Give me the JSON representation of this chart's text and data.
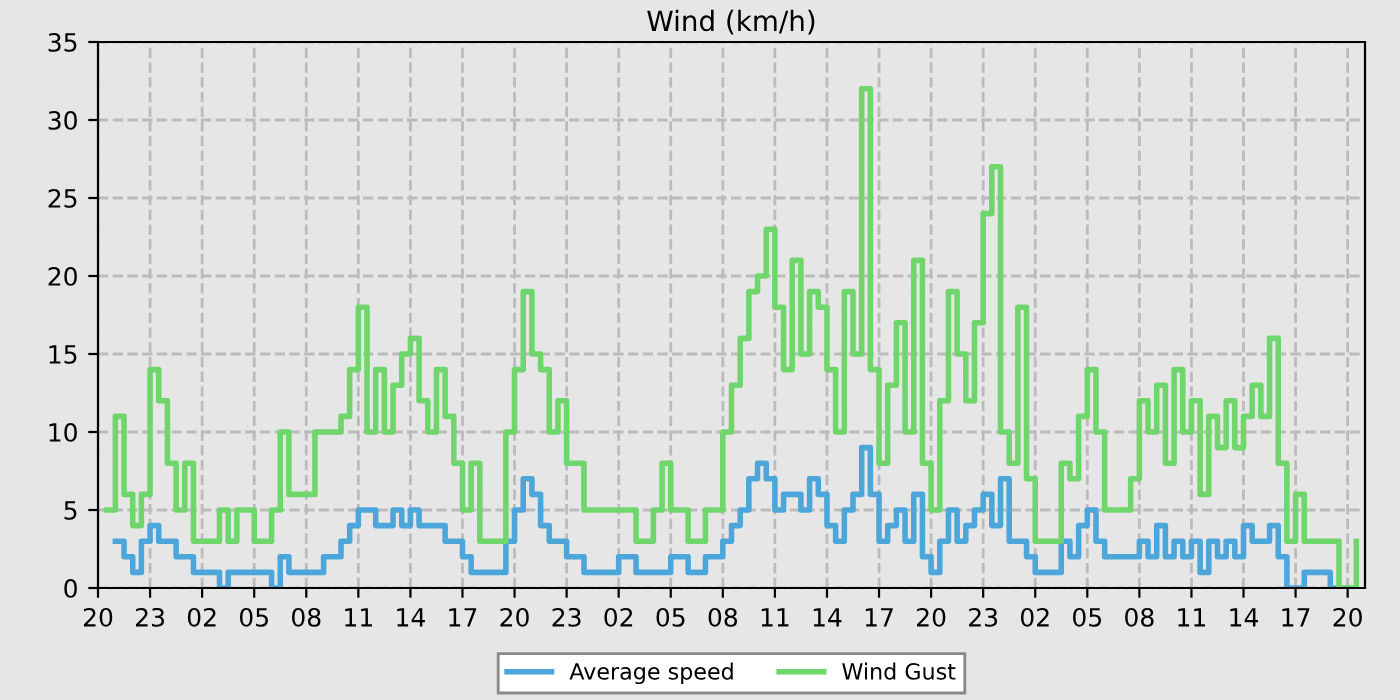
{
  "chart_data": {
    "type": "step",
    "title": "Wind (km/h)",
    "ylim": [
      0,
      35
    ],
    "yticks": [
      0,
      5,
      10,
      15,
      20,
      25,
      30,
      35
    ],
    "categories": [
      "20",
      null,
      null,
      null,
      null,
      null,
      "23",
      null,
      null,
      null,
      null,
      null,
      "02",
      null,
      null,
      null,
      null,
      null,
      "05",
      null,
      null,
      null,
      null,
      null,
      "08",
      null,
      null,
      null,
      null,
      null,
      "11",
      null,
      null,
      null,
      null,
      null,
      "14",
      null,
      null,
      null,
      null,
      null,
      "17",
      null,
      null,
      null,
      null,
      null,
      "20",
      null,
      null,
      null,
      null,
      null,
      "23",
      null,
      null,
      null,
      null,
      null,
      "02",
      null,
      null,
      null,
      null,
      null,
      "05",
      null,
      null,
      null,
      null,
      null,
      "08",
      null,
      null,
      null,
      null,
      null,
      "11",
      null,
      null,
      null,
      null,
      null,
      "14",
      null,
      null,
      null,
      null,
      null,
      "17",
      null,
      null,
      null,
      null,
      null,
      "20",
      null,
      null,
      null,
      null,
      null,
      "23",
      null,
      null,
      null,
      null,
      null,
      "02",
      null,
      null,
      null,
      null,
      null,
      "05",
      null,
      null,
      null,
      null,
      null,
      "08",
      null,
      null,
      null,
      null,
      null,
      "11",
      null,
      null,
      null,
      null,
      null,
      "14",
      null,
      null,
      null,
      null,
      null,
      "17",
      null,
      null,
      null,
      null,
      null,
      "20",
      null,
      null
    ],
    "grid": true,
    "legend": "bottom",
    "line_style": "solid",
    "marker": "none",
    "series": [
      {
        "name": "Average speed",
        "color": "#4da6d9",
        "values": [
          null,
          null,
          3,
          2,
          1,
          3,
          4,
          3,
          3,
          2,
          2,
          1,
          1,
          1,
          0,
          1,
          1,
          1,
          1,
          1,
          0,
          2,
          1,
          1,
          1,
          1,
          2,
          2,
          3,
          4,
          5,
          5,
          4,
          4,
          5,
          4,
          5,
          4,
          4,
          4,
          3,
          3,
          2,
          1,
          1,
          1,
          1,
          3,
          5,
          7,
          6,
          4,
          3,
          3,
          2,
          2,
          1,
          1,
          1,
          1,
          2,
          2,
          1,
          1,
          1,
          1,
          2,
          2,
          1,
          1,
          2,
          2,
          3,
          4,
          5,
          7,
          8,
          7,
          5,
          6,
          6,
          5,
          7,
          6,
          4,
          3,
          5,
          6,
          9,
          6,
          3,
          4,
          5,
          3,
          6,
          2,
          1,
          3,
          5,
          3,
          4,
          5,
          6,
          4,
          7,
          3,
          3,
          2,
          1,
          1,
          1,
          3,
          2,
          4,
          5,
          3,
          2,
          2,
          2,
          2,
          3,
          2,
          4,
          2,
          3,
          2,
          3,
          1,
          3,
          2,
          3,
          2,
          4,
          3,
          3,
          4,
          2,
          0,
          0,
          1,
          1,
          1,
          0,
          0,
          0,
          null,
          null
        ]
      },
      {
        "name": "Wind Gust",
        "color": "#6fd66b",
        "values": [
          null,
          5,
          11,
          6,
          4,
          6,
          14,
          12,
          8,
          5,
          8,
          3,
          3,
          3,
          5,
          3,
          5,
          5,
          3,
          3,
          5,
          10,
          6,
          6,
          6,
          10,
          10,
          10,
          11,
          14,
          18,
          10,
          14,
          10,
          13,
          15,
          16,
          12,
          10,
          14,
          11,
          8,
          5,
          8,
          3,
          3,
          3,
          10,
          14,
          19,
          15,
          14,
          10,
          12,
          8,
          8,
          5,
          5,
          5,
          5,
          5,
          5,
          3,
          3,
          5,
          8,
          5,
          5,
          3,
          3,
          5,
          5,
          10,
          13,
          16,
          19,
          20,
          23,
          18,
          14,
          21,
          15,
          19,
          18,
          14,
          10,
          19,
          15,
          32,
          14,
          8,
          13,
          17,
          10,
          21,
          8,
          5,
          12,
          19,
          15,
          12,
          17,
          24,
          27,
          10,
          8,
          18,
          7,
          3,
          3,
          3,
          8,
          7,
          11,
          14,
          10,
          5,
          5,
          5,
          7,
          12,
          10,
          13,
          8,
          14,
          10,
          12,
          6,
          11,
          9,
          12,
          9,
          11,
          13,
          11,
          16,
          8,
          3,
          6,
          3,
          3,
          3,
          3,
          0,
          0,
          3,
          null
        ]
      }
    ]
  }
}
